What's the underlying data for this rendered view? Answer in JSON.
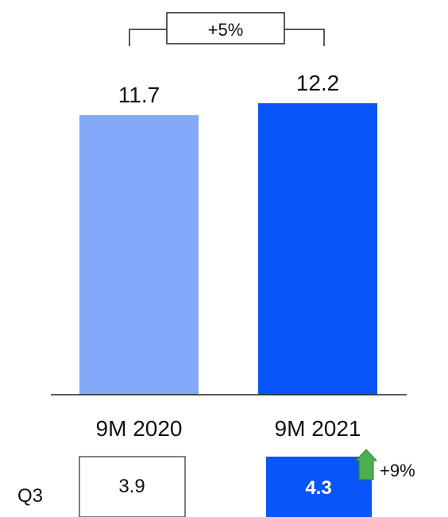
{
  "chart_data": {
    "type": "bar",
    "categories": [
      "9M 2020",
      "9M 2021"
    ],
    "values": [
      11.7,
      12.2
    ],
    "data_labels": [
      "11.7",
      "12.2"
    ],
    "bar_colors": [
      "#84a9fb",
      "#0a55fa"
    ],
    "ylim": [
      0,
      12.2
    ],
    "title": "",
    "xlabel": "",
    "ylabel": "",
    "grid": false,
    "change_annotation": {
      "label": "+5%",
      "from": "9M 2020",
      "to": "9M 2021"
    },
    "quarter_row": {
      "label": "Q3",
      "values": [
        "3.9",
        "4.3"
      ],
      "change_label": "+9%",
      "change_direction": "up",
      "arrow_color": "#4caf50"
    }
  }
}
